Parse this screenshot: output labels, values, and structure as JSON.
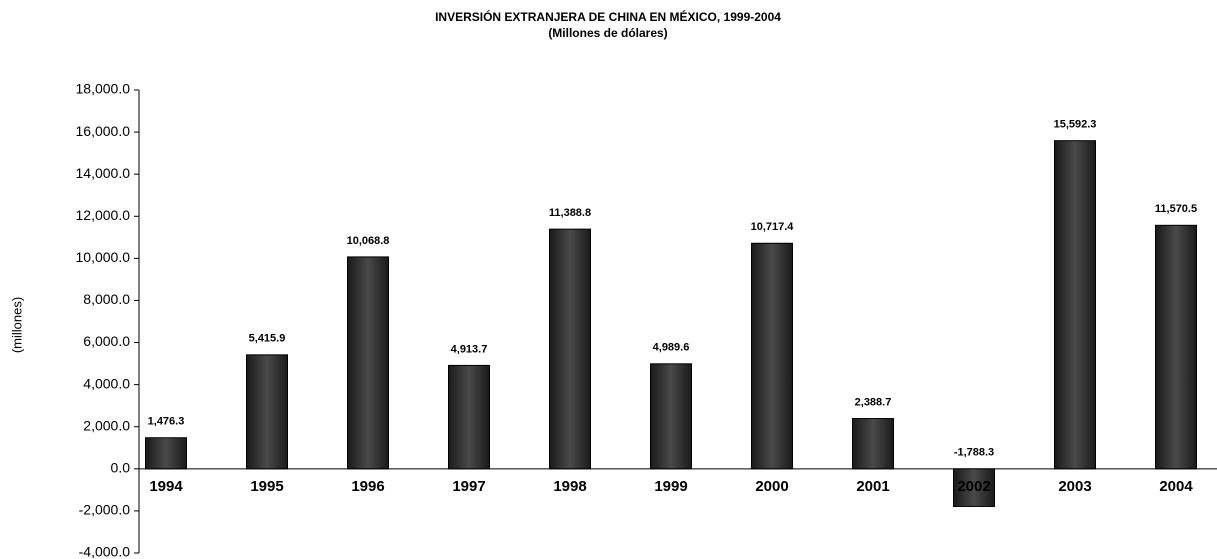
{
  "chart_data": {
    "type": "bar",
    "title": "INVERSIÓN EXTRANJERA DE CHINA EN MÉXICO, 1999-2004",
    "subtitle": "(Millones de dólares)",
    "y_label": "(millones)",
    "categories": [
      "1994",
      "1995",
      "1996",
      "1997",
      "1998",
      "1999",
      "2000",
      "2001",
      "2002",
      "2003",
      "2004"
    ],
    "values": [
      1476.3,
      5415.9,
      10068.8,
      4913.7,
      11388.8,
      4989.6,
      10717.4,
      2388.7,
      -1788.3,
      15592.3,
      11570.5
    ],
    "value_labels": [
      "1,476.3",
      "5,415.9",
      "10,068.8",
      "4,913.7",
      "11,388.8",
      "4,989.6",
      "10,717.4",
      "2,388.7",
      "-1,788.3",
      "15,592.3",
      "11,570.5"
    ],
    "color": "#333333",
    "ylim": [
      -4000,
      18000
    ],
    "yticks": [
      {
        "value": -4000,
        "label": "-4,000.0"
      },
      {
        "value": -2000,
        "label": "-2,000.0"
      },
      {
        "value": 0,
        "label": "0.0"
      },
      {
        "value": 2000,
        "label": "2,000.0"
      },
      {
        "value": 4000,
        "label": "4,000.0"
      },
      {
        "value": 6000,
        "label": "6,000.0"
      },
      {
        "value": 8000,
        "label": "8,000.0"
      },
      {
        "value": 10000,
        "label": "10,000.0"
      },
      {
        "value": 12000,
        "label": "12,000.0"
      },
      {
        "value": 14000,
        "label": "14,000.0"
      },
      {
        "value": 16000,
        "label": "16,000.0"
      },
      {
        "value": 18000,
        "label": "18,000.0"
      }
    ],
    "grid": false
  }
}
